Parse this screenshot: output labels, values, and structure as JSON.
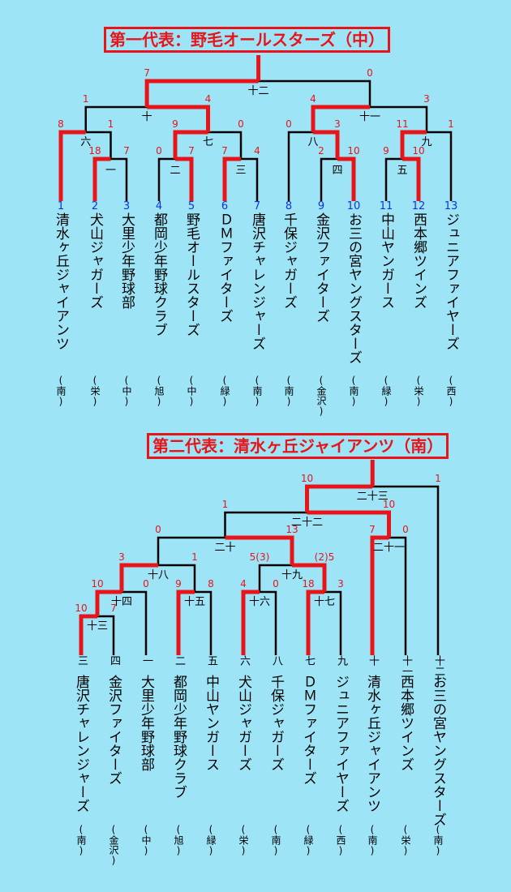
{
  "bracket1": {
    "title": "第一代表：野毛オールスターズ（中）",
    "teams": [
      {
        "num": "1",
        "name": "清水ヶ丘ジャイアンツ",
        "area": "(南)"
      },
      {
        "num": "2",
        "name": "犬山ジャガーズ",
        "area": "(栄)"
      },
      {
        "num": "3",
        "name": "大里少年野球部",
        "area": "(中)"
      },
      {
        "num": "4",
        "name": "都岡少年野球クラブ",
        "area": "(旭)"
      },
      {
        "num": "5",
        "name": "野毛オールスターズ",
        "area": "(中)"
      },
      {
        "num": "6",
        "name": "ＤＭファイターズ",
        "area": "(緑)"
      },
      {
        "num": "7",
        "name": "唐沢チャレンジャーズ",
        "area": "(南)"
      },
      {
        "num": "8",
        "name": "千保ジャガーズ",
        "area": "(南)"
      },
      {
        "num": "9",
        "name": "金沢ファイターズ",
        "area": "(金沢)"
      },
      {
        "num": "10",
        "name": "お三の宮ヤングスターズ",
        "area": "(南)"
      },
      {
        "num": "11",
        "name": "中山ヤンガース",
        "area": "(緑)"
      },
      {
        "num": "12",
        "name": "西本郷ツインズ",
        "area": "(栄)"
      },
      {
        "num": "13",
        "name": "ジュニアファイヤーズ",
        "area": "(西)"
      }
    ],
    "games": [
      {
        "label": "一",
        "left": "18",
        "right": "7"
      },
      {
        "label": "二",
        "left": "0",
        "right": "7"
      },
      {
        "label": "三",
        "left": "7",
        "right": "4"
      },
      {
        "label": "四",
        "left": "2",
        "right": "10"
      },
      {
        "label": "五",
        "left": "9",
        "right": "10"
      },
      {
        "label": "六",
        "left": "8",
        "right": "1"
      },
      {
        "label": "七",
        "left": "9",
        "right": "0"
      },
      {
        "label": "八",
        "left": "0",
        "right": "3"
      },
      {
        "label": "九",
        "left": "11",
        "right": "1"
      },
      {
        "label": "十",
        "left": "1",
        "right": "4"
      },
      {
        "label": "十一",
        "left": "4",
        "right": "3"
      },
      {
        "label": "十二",
        "left": "7",
        "right": "0"
      }
    ]
  },
  "bracket2": {
    "title": "第二代表：清水ヶ丘ジャイアンツ（南）",
    "teams": [
      {
        "num": "三",
        "name": "唐沢チャレンジャーズ",
        "area": "(南)"
      },
      {
        "num": "四",
        "name": "金沢ファイターズ",
        "area": "(金沢)"
      },
      {
        "num": "一",
        "name": "大里少年野球部",
        "area": "(中)"
      },
      {
        "num": "二",
        "name": "都岡少年野球クラブ",
        "area": "(旭)"
      },
      {
        "num": "五",
        "name": "中山ヤンガース",
        "area": "(緑)"
      },
      {
        "num": "六",
        "name": "犬山ジャガーズ",
        "area": "(栄)"
      },
      {
        "num": "八",
        "name": "千保ジャガーズ",
        "area": "(南)"
      },
      {
        "num": "七",
        "name": "ＤＭファイターズ",
        "area": "(緑)"
      },
      {
        "num": "九",
        "name": "ジュニアファイヤーズ",
        "area": "(西)"
      },
      {
        "num": "十",
        "name": "清水ヶ丘ジャイアンツ",
        "area": "(南)"
      },
      {
        "num": "十一",
        "name": "西本郷ツインズ",
        "area": "(栄)"
      },
      {
        "num": "十二",
        "name": "お三の宮ヤングスターズ",
        "area": "(南)"
      }
    ],
    "games": [
      {
        "label": "十三",
        "left": "10",
        "right": "7"
      },
      {
        "label": "十四",
        "left": "10",
        "right": "0"
      },
      {
        "label": "十五",
        "left": "9",
        "right": "8"
      },
      {
        "label": "十六",
        "left": "4",
        "right": "0"
      },
      {
        "label": "十七",
        "left": "18",
        "right": "3"
      },
      {
        "label": "十八",
        "left": "3",
        "right": "1"
      },
      {
        "label": "十九",
        "left": "5(3)",
        "right": "(2)5"
      },
      {
        "label": "二十",
        "left": "0",
        "right": "13"
      },
      {
        "label": "二十一",
        "left": "7",
        "right": "0"
      },
      {
        "label": "二十二",
        "left": "1",
        "right": "10"
      },
      {
        "label": "二十三",
        "left": "10",
        "right": "1"
      }
    ]
  },
  "colors": {
    "background": "#9ee4f7",
    "winner": "#e8141a",
    "loser": "#000000",
    "team_number": "#1133dd",
    "score": "#e8141a"
  }
}
